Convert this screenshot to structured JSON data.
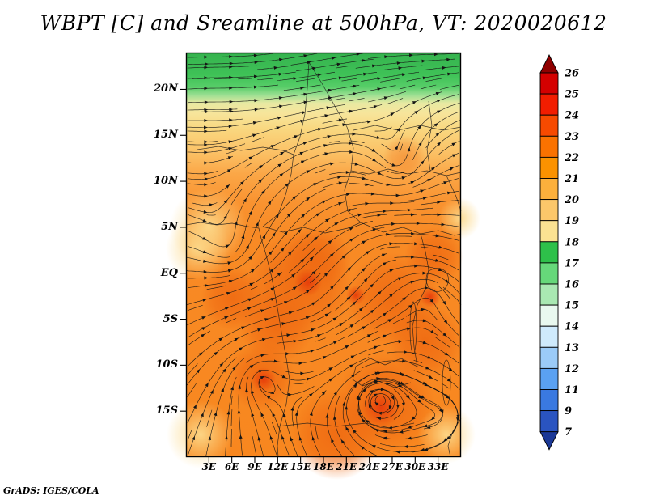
{
  "page": {
    "title": "WBPT [C] and Sreamline at 500hPa, VT: 2020020612",
    "credit": "GrADS: IGES/COLA"
  },
  "chart_data": {
    "type": "heatmap",
    "title": "WBPT [C] and Sreamline at 500hPa, VT: 2020020612",
    "field": "WBPT [C]",
    "overlay": "Sreamline (streamlines with arrowheads)",
    "level": "500hPa",
    "valid_time": "2020020612",
    "legend_position": "right",
    "x_axis": {
      "tick_labels": [
        "3E",
        "6E",
        "9E",
        "12E",
        "15E",
        "18E",
        "21E",
        "24E",
        "27E",
        "30E",
        "33E"
      ],
      "approx_range": [
        "0E",
        "36E"
      ]
    },
    "y_axis": {
      "tick_labels": [
        "20N",
        "15N",
        "10N",
        "5N",
        "EQ",
        "5S",
        "10S",
        "15S"
      ],
      "approx_range": [
        "24N",
        "20S"
      ]
    },
    "colorbar": {
      "tick_labels": [
        "26",
        "25",
        "24",
        "23",
        "22",
        "21",
        "20",
        "19",
        "18",
        "17",
        "16",
        "15",
        "14",
        "13",
        "12",
        "11",
        "9",
        "7"
      ],
      "segments": [
        {
          "range": ">26",
          "color": "#8f0000",
          "shape": "arrow-up"
        },
        {
          "range": "25-26",
          "color": "#d40000",
          "shape": "rect"
        },
        {
          "range": "24-25",
          "color": "#f21d00",
          "shape": "rect"
        },
        {
          "range": "23-24",
          "color": "#f74a00",
          "shape": "rect"
        },
        {
          "range": "22-23",
          "color": "#fa7200",
          "shape": "rect"
        },
        {
          "range": "21-22",
          "color": "#fb9200",
          "shape": "rect"
        },
        {
          "range": "20-21",
          "color": "#fcb03c",
          "shape": "rect"
        },
        {
          "range": "19-20",
          "color": "#fcc76a",
          "shape": "rect"
        },
        {
          "range": "18-19",
          "color": "#fbe292",
          "shape": "rect"
        },
        {
          "range": "17-18",
          "color": "#2ec04a",
          "shape": "rect"
        },
        {
          "range": "16-17",
          "color": "#66d87a",
          "shape": "rect"
        },
        {
          "range": "15-16",
          "color": "#a9e8b2",
          "shape": "rect"
        },
        {
          "range": "14-15",
          "color": "#e9f8ef",
          "shape": "rect"
        },
        {
          "range": "13-14",
          "color": "#cfeafc",
          "shape": "rect"
        },
        {
          "range": "12-13",
          "color": "#9bcbf8",
          "shape": "rect"
        },
        {
          "range": "11-12",
          "color": "#5aa1f2",
          "shape": "rect"
        },
        {
          "range": "9-11",
          "color": "#3a79e0",
          "shape": "rect"
        },
        {
          "range": "7-9",
          "color": "#2a54c0",
          "shape": "rect"
        },
        {
          "range": "<7",
          "color": "#1b3896",
          "shape": "arrow-down"
        }
      ]
    },
    "field_summary": [
      {
        "region": "northern band ~19N-24N",
        "wbpt_c": "17-18 (green)"
      },
      {
        "region": "band ~13N-19N",
        "wbpt_c": "18-20 (pale yellow / tan)"
      },
      {
        "region": "~8N-13N",
        "wbpt_c": "20-22 (orange)"
      },
      {
        "region": "equatorial and southern interior",
        "wbpt_c": "22-24 (deep orange)"
      },
      {
        "region": "local maxima near 13S,23E and 10S,9E and 1S,15E",
        "wbpt_c": ">24 (red cores)"
      },
      {
        "region": "southwest and southeast corners",
        "wbpt_c": "19-21 (lighter)"
      }
    ]
  }
}
